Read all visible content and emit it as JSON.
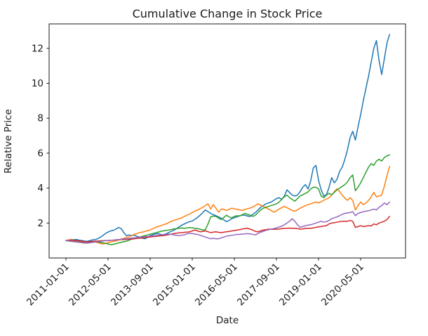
{
  "chart": {
    "title": "Cumulative Change in Stock Price",
    "xlabel": "Date",
    "ylabel": "Relative Price"
  },
  "chart_data": {
    "type": "line",
    "title": "Cumulative Change in Stock Price",
    "xlabel": "Date",
    "ylabel": "Relative Price",
    "legend": "none",
    "grid": false,
    "x_start": "2011-01",
    "x_cadence": "monthly",
    "x_tick_labels": [
      "2011-01-01",
      "2012-05-01",
      "2013-09-01",
      "2015-01-01",
      "2016-05-01",
      "2017-09-01",
      "2019-01-01",
      "2020-05-01"
    ],
    "x_tick_month_index": [
      0,
      16,
      32,
      48,
      64,
      80,
      96,
      112
    ],
    "x_tick_rotation_deg": 45,
    "y_ticks": [
      2,
      4,
      6,
      8,
      10,
      12
    ],
    "ylim": [
      0,
      13.4
    ],
    "series": [
      {
        "name": "blue",
        "color": "#1f77b4",
        "values": [
          1.0,
          1.02,
          1.05,
          1.04,
          1.06,
          1.02,
          1.0,
          0.97,
          0.95,
          0.99,
          1.03,
          1.05,
          1.1,
          1.18,
          1.28,
          1.4,
          1.48,
          1.55,
          1.58,
          1.65,
          1.75,
          1.68,
          1.45,
          1.28,
          1.32,
          1.28,
          1.3,
          1.24,
          1.18,
          1.13,
          1.1,
          1.18,
          1.28,
          1.33,
          1.38,
          1.4,
          1.35,
          1.33,
          1.38,
          1.45,
          1.52,
          1.58,
          1.68,
          1.78,
          1.88,
          1.95,
          2.02,
          2.08,
          2.12,
          2.22,
          2.32,
          2.45,
          2.6,
          2.75,
          2.65,
          2.55,
          2.48,
          2.42,
          2.35,
          2.28,
          2.18,
          2.08,
          2.15,
          2.25,
          2.3,
          2.35,
          2.42,
          2.45,
          2.45,
          2.4,
          2.38,
          2.5,
          2.6,
          2.75,
          2.9,
          3.0,
          3.1,
          3.15,
          3.2,
          3.3,
          3.4,
          3.45,
          3.35,
          3.55,
          3.9,
          3.75,
          3.6,
          3.55,
          3.6,
          3.8,
          4.05,
          4.2,
          3.95,
          4.4,
          5.15,
          5.3,
          4.45,
          3.9,
          3.55,
          3.62,
          4.05,
          4.6,
          4.3,
          4.5,
          4.95,
          5.2,
          5.65,
          6.2,
          6.9,
          7.25,
          6.75,
          7.5,
          8.2,
          9.0,
          9.7,
          10.4,
          11.2,
          12.0,
          12.45,
          11.3,
          10.5,
          11.4,
          12.3,
          12.8
        ]
      },
      {
        "name": "orange",
        "color": "#ff7f0e",
        "values": [
          1.0,
          1.03,
          1.05,
          1.0,
          0.97,
          0.95,
          0.92,
          0.88,
          0.85,
          0.88,
          0.9,
          0.92,
          0.88,
          0.84,
          0.8,
          0.83,
          0.88,
          0.92,
          0.95,
          0.98,
          1.02,
          1.08,
          1.12,
          1.18,
          1.22,
          1.28,
          1.35,
          1.4,
          1.45,
          1.48,
          1.52,
          1.56,
          1.6,
          1.68,
          1.75,
          1.8,
          1.85,
          1.9,
          1.95,
          2.02,
          2.1,
          2.15,
          2.2,
          2.25,
          2.3,
          2.38,
          2.45,
          2.52,
          2.6,
          2.68,
          2.75,
          2.82,
          2.9,
          3.0,
          3.1,
          2.8,
          3.05,
          2.85,
          2.62,
          2.8,
          2.78,
          2.72,
          2.78,
          2.85,
          2.82,
          2.78,
          2.75,
          2.72,
          2.78,
          2.82,
          2.86,
          2.92,
          3.0,
          3.1,
          3.02,
          2.95,
          2.88,
          2.8,
          2.72,
          2.62,
          2.7,
          2.8,
          2.88,
          2.95,
          2.88,
          2.8,
          2.72,
          2.68,
          2.75,
          2.85,
          2.92,
          3.0,
          3.05,
          3.1,
          3.15,
          3.2,
          3.15,
          3.22,
          3.3,
          3.38,
          3.45,
          3.6,
          3.8,
          3.95,
          3.8,
          3.6,
          3.42,
          3.3,
          3.45,
          3.3,
          2.75,
          3.0,
          3.2,
          3.05,
          3.15,
          3.3,
          3.5,
          3.75,
          3.5,
          3.55,
          3.6,
          4.1,
          4.7,
          5.25
        ]
      },
      {
        "name": "green",
        "color": "#2ca02c",
        "values": [
          1.0,
          0.97,
          0.95,
          0.93,
          0.92,
          0.9,
          0.88,
          0.85,
          0.87,
          0.9,
          0.93,
          0.95,
          0.92,
          0.9,
          0.87,
          0.84,
          0.8,
          0.76,
          0.78,
          0.82,
          0.86,
          0.9,
          0.93,
          0.96,
          1.02,
          1.08,
          1.12,
          1.16,
          1.2,
          1.24,
          1.28,
          1.32,
          1.36,
          1.4,
          1.44,
          1.48,
          1.52,
          1.55,
          1.58,
          1.6,
          1.63,
          1.66,
          1.68,
          1.7,
          1.72,
          1.7,
          1.72,
          1.74,
          1.73,
          1.7,
          1.68,
          1.65,
          1.6,
          1.62,
          1.95,
          2.35,
          2.4,
          2.38,
          2.28,
          2.2,
          2.32,
          2.45,
          2.35,
          2.3,
          2.38,
          2.42,
          2.4,
          2.48,
          2.55,
          2.5,
          2.45,
          2.38,
          2.45,
          2.6,
          2.75,
          2.85,
          2.9,
          2.95,
          3.0,
          3.05,
          3.1,
          3.2,
          3.35,
          3.5,
          3.6,
          3.45,
          3.35,
          3.25,
          3.4,
          3.55,
          3.62,
          3.7,
          3.78,
          3.95,
          4.05,
          4.05,
          3.95,
          3.55,
          3.45,
          3.6,
          3.7,
          3.62,
          3.76,
          3.9,
          4.0,
          4.1,
          4.2,
          4.35,
          4.6,
          4.75,
          3.85,
          4.05,
          4.3,
          4.6,
          4.9,
          5.2,
          5.4,
          5.3,
          5.55,
          5.65,
          5.55,
          5.75,
          5.85,
          5.9
        ]
      },
      {
        "name": "red",
        "color": "#d62728",
        "values": [
          1.0,
          1.01,
          1.02,
          1.0,
          0.99,
          0.98,
          0.96,
          0.93,
          0.92,
          0.94,
          0.95,
          0.96,
          0.97,
          0.98,
          0.99,
          1.0,
          1.0,
          1.01,
          1.02,
          1.03,
          1.05,
          1.05,
          1.05,
          1.06,
          1.07,
          1.08,
          1.1,
          1.12,
          1.13,
          1.15,
          1.17,
          1.18,
          1.2,
          1.22,
          1.23,
          1.25,
          1.27,
          1.28,
          1.3,
          1.33,
          1.36,
          1.4,
          1.42,
          1.44,
          1.45,
          1.47,
          1.48,
          1.5,
          1.55,
          1.6,
          1.55,
          1.5,
          1.52,
          1.55,
          1.5,
          1.45,
          1.48,
          1.5,
          1.47,
          1.45,
          1.48,
          1.5,
          1.52,
          1.55,
          1.57,
          1.6,
          1.62,
          1.66,
          1.68,
          1.7,
          1.65,
          1.6,
          1.52,
          1.5,
          1.55,
          1.6,
          1.62,
          1.65,
          1.65,
          1.64,
          1.65,
          1.65,
          1.68,
          1.7,
          1.7,
          1.71,
          1.7,
          1.7,
          1.68,
          1.65,
          1.66,
          1.7,
          1.7,
          1.7,
          1.72,
          1.75,
          1.78,
          1.8,
          1.83,
          1.85,
          1.95,
          2.0,
          2.02,
          2.05,
          2.08,
          2.1,
          2.1,
          2.1,
          2.15,
          2.1,
          1.75,
          1.8,
          1.85,
          1.8,
          1.82,
          1.85,
          1.83,
          1.95,
          1.9,
          2.0,
          2.05,
          2.1,
          2.2,
          2.38
        ]
      },
      {
        "name": "purple",
        "color": "#9467bd",
        "values": [
          1.0,
          0.98,
          0.96,
          0.94,
          0.92,
          0.9,
          0.88,
          0.86,
          0.85,
          0.87,
          0.89,
          0.91,
          0.93,
          0.95,
          0.97,
          0.99,
          1.0,
          1.01,
          1.02,
          1.04,
          1.05,
          1.07,
          1.09,
          1.1,
          1.12,
          1.14,
          1.15,
          1.17,
          1.19,
          1.2,
          1.22,
          1.23,
          1.25,
          1.27,
          1.28,
          1.3,
          1.32,
          1.34,
          1.35,
          1.37,
          1.35,
          1.32,
          1.3,
          1.28,
          1.3,
          1.33,
          1.38,
          1.42,
          1.4,
          1.37,
          1.35,
          1.3,
          1.25,
          1.2,
          1.15,
          1.1,
          1.12,
          1.1,
          1.1,
          1.15,
          1.2,
          1.25,
          1.28,
          1.3,
          1.32,
          1.35,
          1.35,
          1.37,
          1.38,
          1.4,
          1.38,
          1.35,
          1.32,
          1.4,
          1.48,
          1.52,
          1.58,
          1.62,
          1.65,
          1.68,
          1.72,
          1.77,
          1.82,
          1.9,
          2.0,
          2.1,
          2.25,
          2.1,
          1.9,
          1.75,
          1.8,
          1.85,
          1.88,
          1.9,
          1.95,
          2.0,
          2.05,
          2.1,
          2.05,
          2.08,
          2.15,
          2.25,
          2.3,
          2.35,
          2.42,
          2.5,
          2.55,
          2.58,
          2.6,
          2.65,
          2.42,
          2.55,
          2.6,
          2.65,
          2.68,
          2.7,
          2.75,
          2.8,
          2.75,
          2.9,
          3.0,
          3.15,
          3.05,
          3.2
        ]
      }
    ],
    "style": {
      "background": "#ffffff",
      "spine_color": "#000000",
      "text_color": "#1a1a1a",
      "line_width": 1.5
    }
  }
}
